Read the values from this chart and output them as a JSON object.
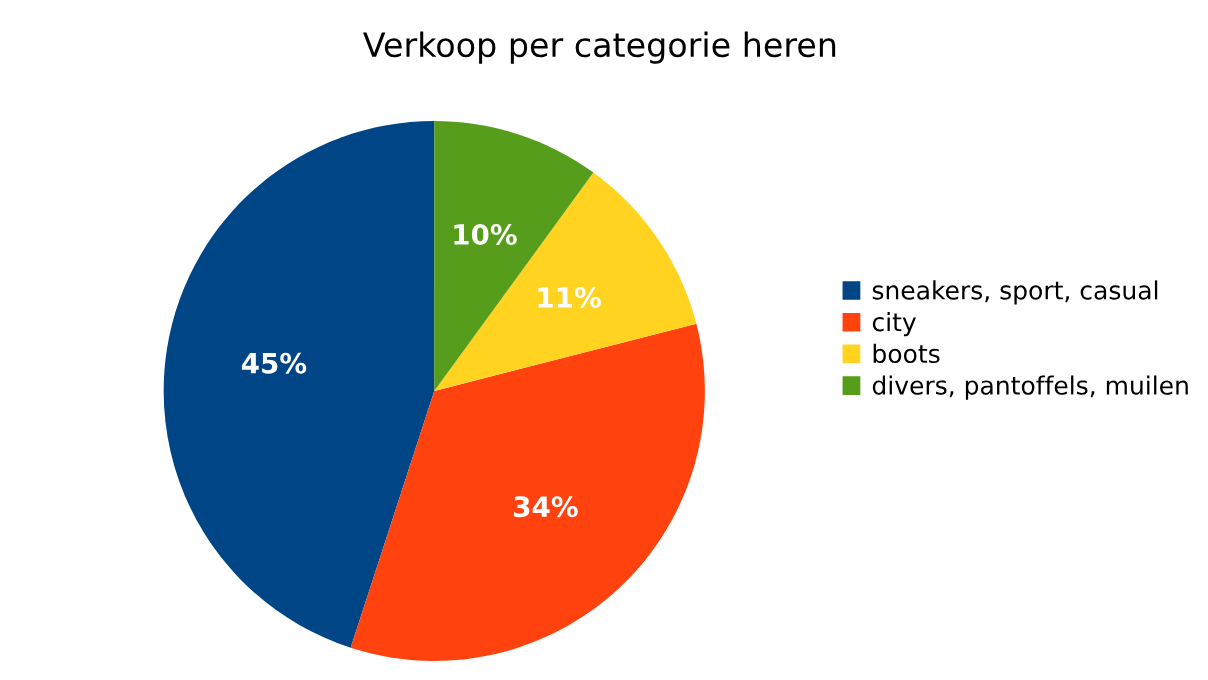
{
  "chart_data": {
    "type": "pie",
    "title": "Verkoop per categorie heren",
    "categories": [
      "sneakers, sport, casual",
      "city",
      "boots",
      "divers, pantoffels, muilen"
    ],
    "values": [
      45,
      34,
      11,
      10
    ],
    "colors": [
      "#004586",
      "#ff420e",
      "#ffd320",
      "#579d1c"
    ],
    "value_labels": [
      "45%",
      "34%",
      "11%",
      "10%"
    ],
    "legend": "right"
  }
}
